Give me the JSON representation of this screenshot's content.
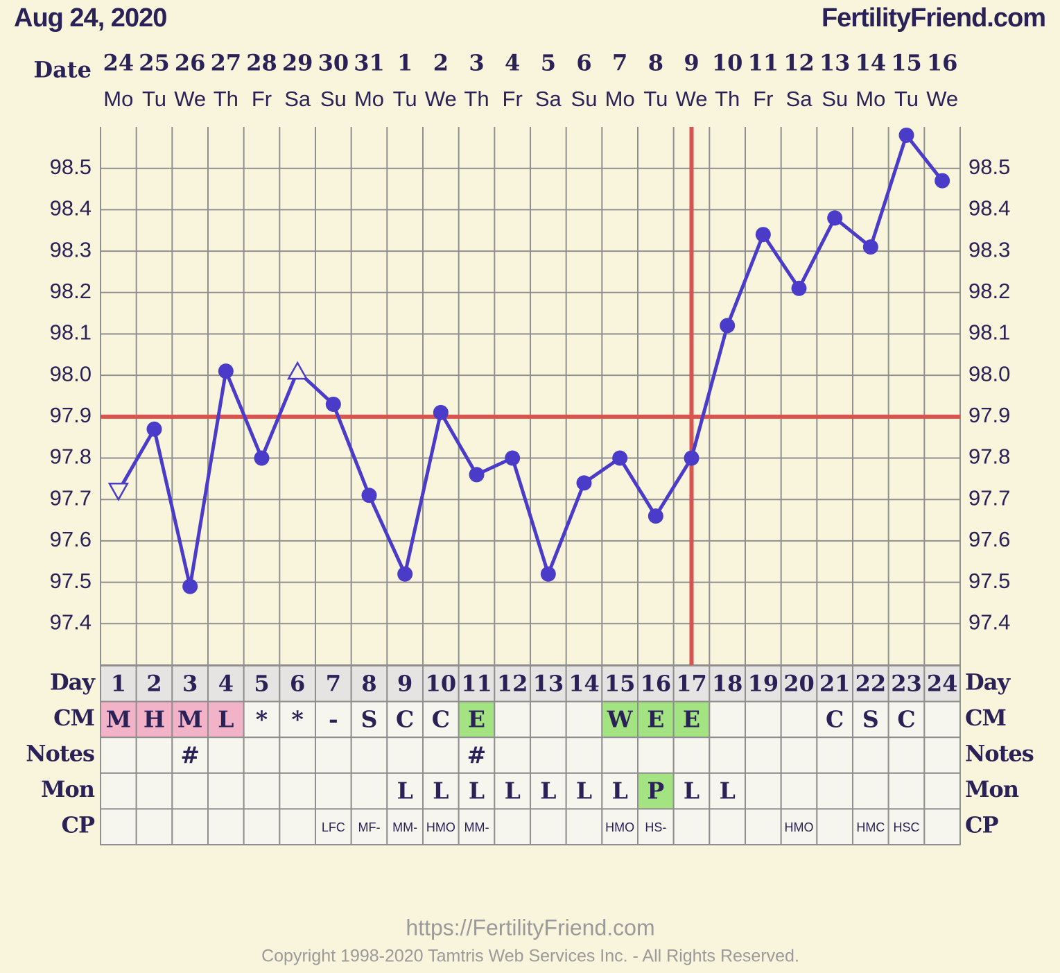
{
  "chart_data": {
    "type": "line",
    "title": "Aug 24, 2020",
    "site": "FertilityFriend.com",
    "date_label": "Date",
    "dates": [
      "24",
      "25",
      "26",
      "27",
      "28",
      "29",
      "30",
      "31",
      "1",
      "2",
      "3",
      "4",
      "5",
      "6",
      "7",
      "8",
      "9",
      "10",
      "11",
      "12",
      "13",
      "14",
      "15",
      "16"
    ],
    "weekdays": [
      "Mo",
      "Tu",
      "We",
      "Th",
      "Fr",
      "Sa",
      "Su",
      "Mo",
      "Tu",
      "We",
      "Th",
      "Fr",
      "Sa",
      "Su",
      "Mo",
      "Tu",
      "We",
      "Th",
      "Fr",
      "Sa",
      "Su",
      "Mo",
      "Tu",
      "We"
    ],
    "series": [
      {
        "color": "#4b3bc9",
        "values": [
          97.72,
          97.87,
          97.49,
          98.01,
          97.8,
          98.01,
          97.93,
          97.71,
          97.52,
          97.91,
          97.76,
          97.8,
          97.52,
          97.74,
          97.8,
          97.66,
          97.8,
          98.12,
          98.34,
          98.21,
          98.38,
          98.31,
          98.58,
          98.47
        ],
        "markers": [
          "open-down",
          "dot",
          "dot",
          "dot",
          "dot",
          "open-up",
          "dot",
          "dot",
          "dot",
          "dot",
          "dot",
          "dot",
          "dot",
          "dot",
          "dot",
          "dot",
          "dot",
          "dot",
          "dot",
          "dot",
          "dot",
          "dot",
          "dot",
          "dot"
        ]
      }
    ],
    "ylim": [
      97.3,
      98.6
    ],
    "yticks": [
      97.4,
      97.5,
      97.6,
      97.7,
      97.8,
      97.9,
      {
        "value": 98,
        "label": "98.0"
      },
      98.1,
      98.2,
      98.3,
      98.4,
      98.5
    ],
    "grid": true,
    "coverline": 97.9,
    "coverline_color": "#d9534f",
    "ovulation_day": 17,
    "rows": {
      "day": {
        "label": "Day",
        "values": [
          1,
          2,
          3,
          4,
          5,
          6,
          7,
          8,
          9,
          10,
          11,
          12,
          13,
          14,
          15,
          16,
          17,
          18,
          19,
          20,
          21,
          22,
          23,
          24
        ]
      },
      "cm": {
        "label": "CM",
        "values": [
          "M",
          "H",
          "M",
          "L",
          "*",
          "*",
          "-",
          "S",
          "C",
          "C",
          "E",
          null,
          null,
          null,
          "W",
          "E",
          "E",
          null,
          null,
          null,
          "C",
          "S",
          "C",
          null
        ],
        "colors": [
          "#f2b3c8",
          "#f2b3c8",
          "#f2b3c8",
          "#f2b3c8",
          null,
          null,
          null,
          null,
          null,
          null,
          "#a4e382",
          null,
          null,
          null,
          "#a4e382",
          "#a4e382",
          "#a4e382",
          null,
          null,
          null,
          null,
          null,
          null,
          null
        ]
      },
      "notes": {
        "label": "Notes",
        "values": [
          null,
          null,
          "#",
          null,
          null,
          null,
          null,
          null,
          null,
          null,
          "#",
          null,
          null,
          null,
          null,
          null,
          null,
          null,
          null,
          null,
          null,
          null,
          null,
          null
        ]
      },
      "mon": {
        "label": "Mon",
        "values": [
          null,
          null,
          null,
          null,
          null,
          null,
          null,
          null,
          "L",
          "L",
          "L",
          "L",
          "L",
          "L",
          "L",
          "P",
          "L",
          "L",
          null,
          null,
          null,
          null,
          null,
          null
        ],
        "colors": [
          null,
          null,
          null,
          null,
          null,
          null,
          null,
          null,
          null,
          null,
          null,
          null,
          null,
          null,
          null,
          "#a4e382",
          null,
          null,
          null,
          null,
          null,
          null,
          null,
          null
        ]
      },
      "cp": {
        "label": "CP",
        "values": [
          null,
          null,
          null,
          null,
          null,
          null,
          "LFC",
          "MF-",
          "MM-",
          "HMO",
          "MM-",
          null,
          null,
          null,
          "HMO",
          "HS-",
          null,
          null,
          null,
          "HMO",
          null,
          "HMC",
          "HSC",
          null
        ]
      }
    },
    "footer_url": "https://FertilityFriend.com",
    "copyright": "Copyright 1998-2020 Tamtris Web Services Inc. - All Rights Reserved."
  }
}
